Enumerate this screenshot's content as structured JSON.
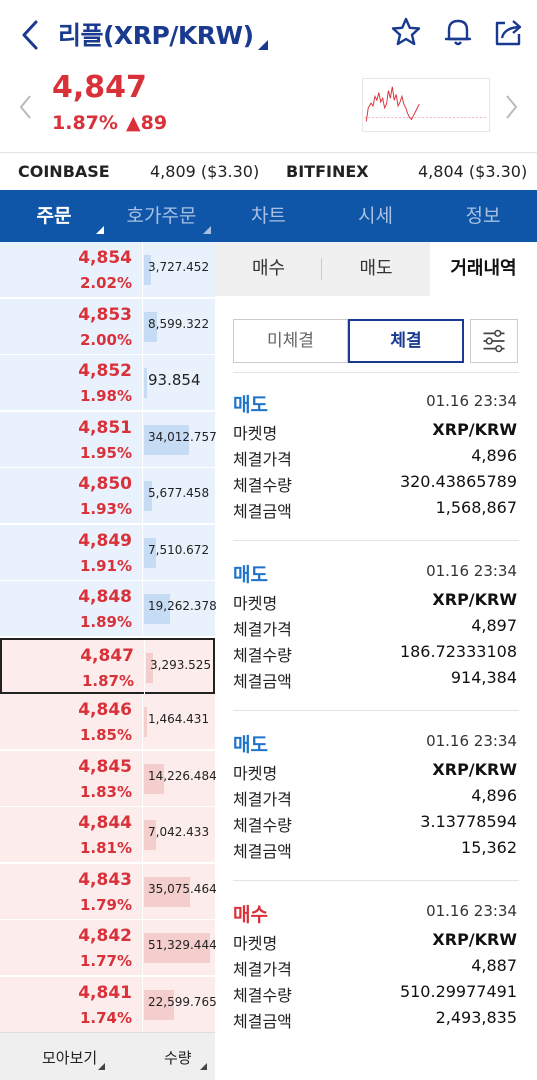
{
  "header": {
    "title": "리플(XRP/KRW)",
    "icons": [
      "back-chevron",
      "star-icon",
      "bell-icon",
      "share-icon"
    ]
  },
  "price": {
    "current": "4,847",
    "change_pct": "1.87%",
    "change_abs": "▲89",
    "color": "#d9313a"
  },
  "exchanges": [
    {
      "name": "COINBASE",
      "value": "4,809 ($3.30)"
    },
    {
      "name": "BITFINEX",
      "value": "4,804 ($3.30)"
    }
  ],
  "tabs": [
    "주문",
    "호가주문",
    "차트",
    "시세",
    "정보"
  ],
  "orderbook": {
    "rows": [
      {
        "price": "4,854",
        "pct": "2.02%",
        "qty": "3,727.452",
        "type": "ask",
        "fill": 0.04
      },
      {
        "price": "4,853",
        "pct": "2.00%",
        "qty": "8,599.322",
        "type": "ask",
        "fill": 0.08
      },
      {
        "price": "4,852",
        "pct": "1.98%",
        "qty": "93.854",
        "type": "ask",
        "fill": 0.0
      },
      {
        "price": "4,851",
        "pct": "1.95%",
        "qty": "34,012.757",
        "type": "ask",
        "fill": 0.27
      },
      {
        "price": "4,850",
        "pct": "1.93%",
        "qty": "5,677.458",
        "type": "ask",
        "fill": 0.05
      },
      {
        "price": "4,849",
        "pct": "1.91%",
        "qty": "7,510.672",
        "type": "ask",
        "fill": 0.07
      },
      {
        "price": "4,848",
        "pct": "1.89%",
        "qty": "19,262.378",
        "type": "ask",
        "fill": 0.16
      },
      {
        "price": "4,847",
        "pct": "1.87%",
        "qty": "3,293.525",
        "type": "bid",
        "fill": 0.04
      },
      {
        "price": "4,846",
        "pct": "1.85%",
        "qty": "1,464.431",
        "type": "bid",
        "fill": 0.02
      },
      {
        "price": "4,845",
        "pct": "1.83%",
        "qty": "14,226.484",
        "type": "bid",
        "fill": 0.12
      },
      {
        "price": "4,844",
        "pct": "1.81%",
        "qty": "7,042.433",
        "type": "bid",
        "fill": 0.07
      },
      {
        "price": "4,843",
        "pct": "1.79%",
        "qty": "35,075.464",
        "type": "bid",
        "fill": 0.28
      },
      {
        "price": "4,842",
        "pct": "1.77%",
        "qty": "51,329.444",
        "type": "bid",
        "fill": 0.4
      },
      {
        "price": "4,841",
        "pct": "1.74%",
        "qty": "22,599.765",
        "type": "bid",
        "fill": 0.18
      }
    ],
    "footer": [
      "모아보기",
      "수량"
    ]
  },
  "order_tabs": [
    "매수",
    "매도",
    "거래내역"
  ],
  "history_filter": [
    "미체결",
    "체결"
  ],
  "trades": [
    {
      "side": "매도",
      "side_type": "sell",
      "time": "01.16 23:34",
      "rows": [
        [
          "마켓명",
          "XRP/KRW"
        ],
        [
          "체결가격",
          "4,896"
        ],
        [
          "체결수량",
          "320.43865789"
        ],
        [
          "체결금액",
          "1,568,867"
        ]
      ]
    },
    {
      "side": "매도",
      "side_type": "sell",
      "time": "01.16 23:34",
      "rows": [
        [
          "마켓명",
          "XRP/KRW"
        ],
        [
          "체결가격",
          "4,897"
        ],
        [
          "체결수량",
          "186.72333108"
        ],
        [
          "체결금액",
          "914,384"
        ]
      ]
    },
    {
      "side": "매도",
      "side_type": "sell",
      "time": "01.16 23:34",
      "rows": [
        [
          "마켓명",
          "XRP/KRW"
        ],
        [
          "체결가격",
          "4,896"
        ],
        [
          "체결수량",
          "3.13778594"
        ],
        [
          "체결금액",
          "15,362"
        ]
      ]
    },
    {
      "side": "매수",
      "side_type": "buy",
      "time": "01.16 23:34",
      "rows": [
        [
          "마켓명",
          "XRP/KRW"
        ],
        [
          "체결가격",
          "4,887"
        ],
        [
          "체결수량",
          "510.29977491"
        ],
        [
          "체결금액",
          "2,493,835"
        ]
      ]
    }
  ]
}
